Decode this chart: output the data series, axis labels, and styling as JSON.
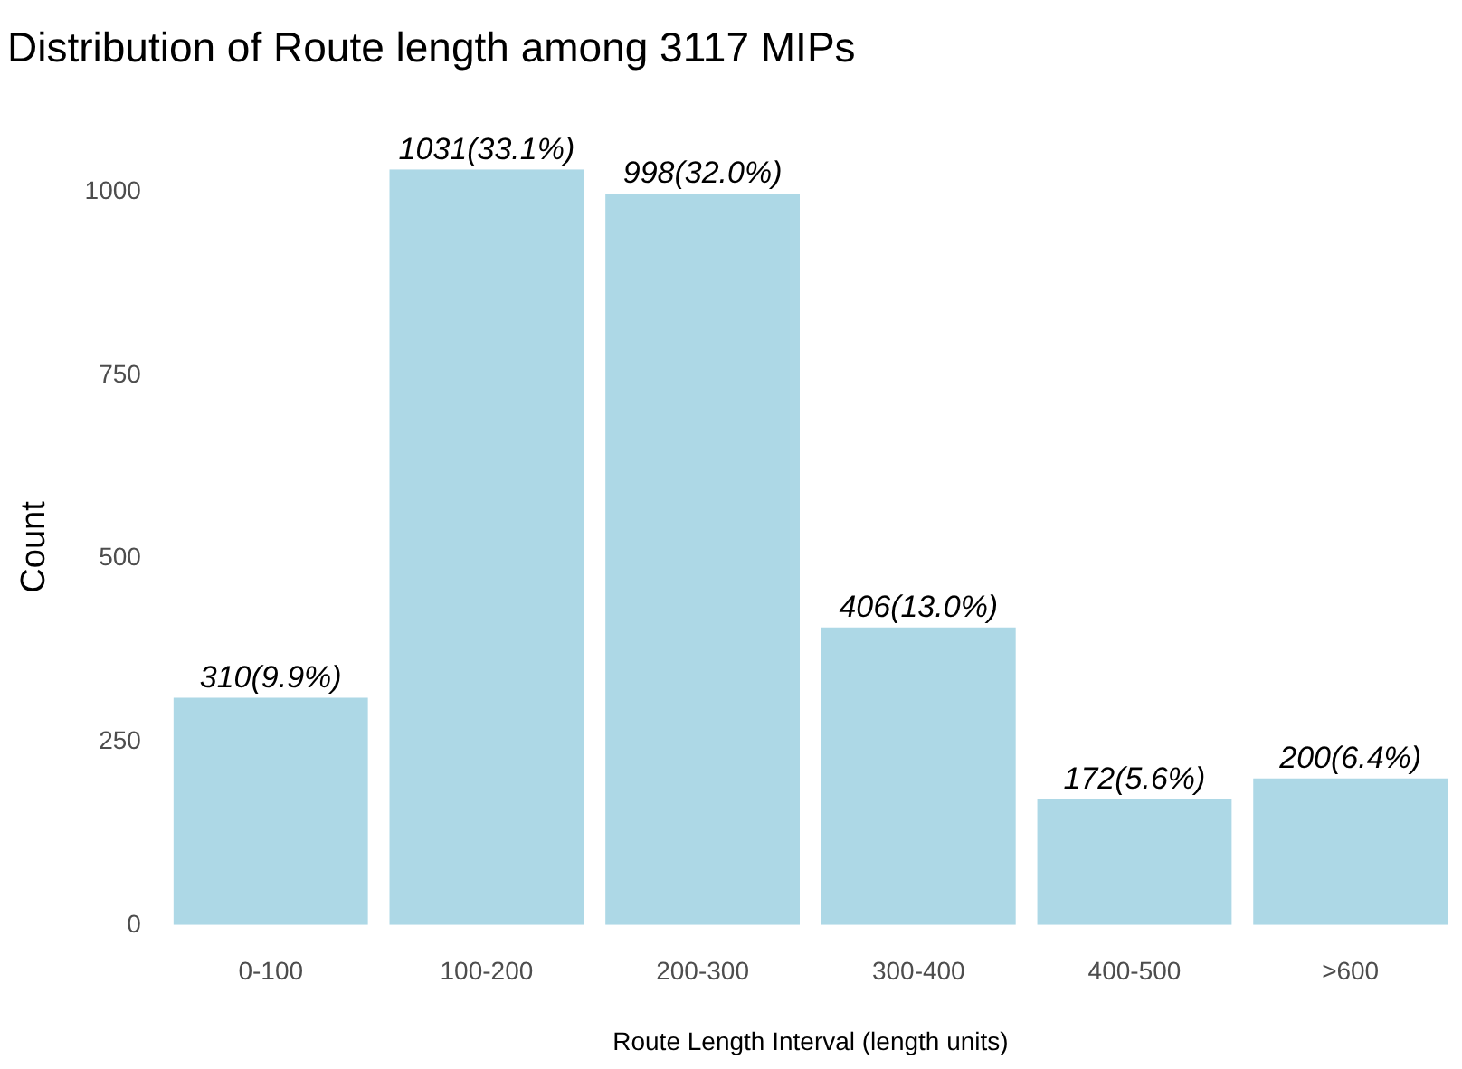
{
  "chart_data": {
    "type": "bar",
    "title": "Distribution of Route length among 3117 MIPs",
    "xlabel": "Route Length Interval (length units)",
    "ylabel": "Count",
    "categories": [
      "0-100",
      "100-200",
      "200-300",
      "300-400",
      "400-500",
      ">600"
    ],
    "values": [
      310,
      1031,
      998,
      406,
      172,
      200
    ],
    "value_labels": [
      "310(9.9%)",
      "1031(33.1%)",
      "998(32.0%)",
      "406(13.0%)",
      "172(5.6%)",
      "200(6.4%)"
    ],
    "color": "#add8e6",
    "ylim": [
      0,
      1031
    ],
    "yticks": [
      0,
      250,
      500,
      750,
      1000
    ],
    "grid": false,
    "legend": false
  }
}
